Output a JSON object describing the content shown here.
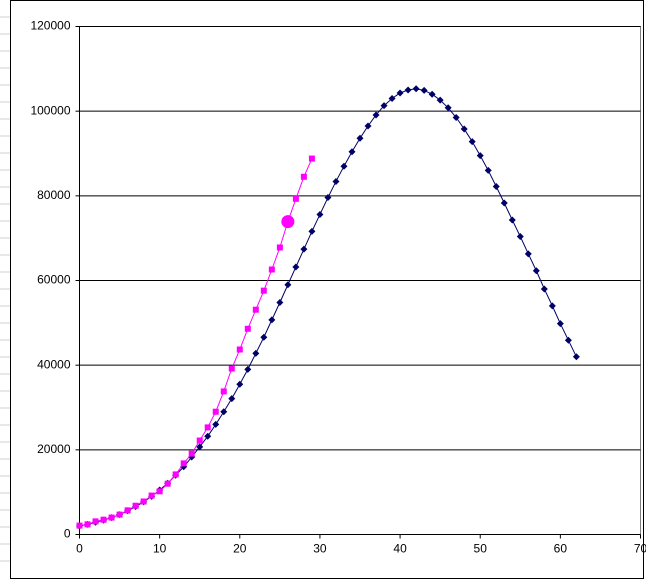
{
  "chart_data": {
    "type": "scatter-line",
    "xlim": [
      0,
      70
    ],
    "xticks": [
      0,
      10,
      20,
      30,
      40,
      50,
      60,
      70
    ],
    "ylim": [
      0,
      120000
    ],
    "yticks": [
      0,
      20000,
      40000,
      60000,
      80000,
      100000,
      120000
    ],
    "grid": true,
    "series": [
      {
        "color": "#000066",
        "marker": "diamond",
        "x": [
          0,
          1,
          2,
          3,
          4,
          5,
          6,
          7,
          8,
          9,
          10,
          11,
          12,
          13,
          14,
          15,
          16,
          17,
          18,
          19,
          20,
          21,
          22,
          23,
          24,
          25,
          26,
          27,
          28,
          29,
          30,
          31,
          32,
          33,
          34,
          35,
          36,
          37,
          38,
          39,
          40,
          41,
          42,
          43,
          44,
          45,
          46,
          47,
          48,
          49,
          50,
          51,
          52,
          53,
          54,
          55,
          56,
          57,
          58,
          59,
          60,
          61,
          62
        ],
        "values": [
          2000,
          2400,
          2900,
          3400,
          4000,
          4700,
          5600,
          6600,
          7700,
          9000,
          10500,
          12100,
          14000,
          16000,
          18300,
          20700,
          23200,
          26000,
          29000,
          32100,
          35500,
          39000,
          42800,
          46600,
          50700,
          54800,
          59000,
          63200,
          67400,
          71600,
          75600,
          79600,
          83400,
          87000,
          90400,
          93600,
          96500,
          99100,
          101300,
          103000,
          104300,
          105000,
          105300,
          104900,
          104000,
          102600,
          100800,
          98500,
          95800,
          92800,
          89500,
          86000,
          82200,
          78300,
          74300,
          70400,
          66300,
          62300,
          58000,
          54000,
          49800,
          45900,
          42000
        ]
      },
      {
        "color": "#ff00ff",
        "marker": "square",
        "x": [
          0,
          1,
          2,
          3,
          4,
          5,
          6,
          7,
          8,
          9,
          10,
          11,
          12,
          13,
          14,
          15,
          16,
          17,
          18,
          19,
          20,
          21,
          22,
          23,
          24,
          25,
          26,
          27,
          28,
          29
        ],
        "values": [
          2100,
          2400,
          3100,
          3500,
          4000,
          4700,
          5700,
          6800,
          7800,
          9200,
          10200,
          12000,
          14200,
          16800,
          19100,
          22200,
          25300,
          29000,
          33800,
          39200,
          43700,
          48600,
          53100,
          57600,
          62600,
          67800,
          73900,
          79300,
          84500,
          88800
        ]
      },
      {
        "color": "#ff00ff",
        "marker": "circle",
        "x": [
          26
        ],
        "values": [
          73900
        ]
      }
    ]
  }
}
